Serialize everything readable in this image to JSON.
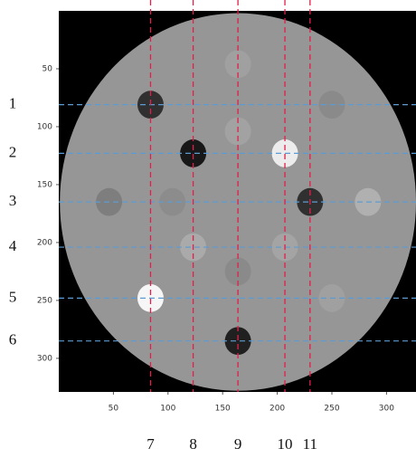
{
  "chart_data": {
    "type": "image",
    "xlim": [
      0,
      327
    ],
    "ylim": [
      329,
      0
    ],
    "xticks": [
      50,
      100,
      150,
      200,
      250,
      300
    ],
    "yticks": [
      50,
      100,
      150,
      200,
      250,
      300
    ],
    "background": "#000000",
    "disk": {
      "cx": 164,
      "cy": 165,
      "r": 163,
      "color": "#969696"
    },
    "circles": [
      {
        "cx": 84,
        "cy": 81,
        "r": 12,
        "color": "#303030"
      },
      {
        "cx": 123,
        "cy": 123,
        "r": 12,
        "color": "#181818"
      },
      {
        "cx": 207,
        "cy": 123,
        "r": 12,
        "color": "#ececec"
      },
      {
        "cx": 230,
        "cy": 165,
        "r": 12,
        "color": "#303030"
      },
      {
        "cx": 84,
        "cy": 248,
        "r": 12,
        "color": "#f6f6f6"
      },
      {
        "cx": 164,
        "cy": 285,
        "r": 12,
        "color": "#202020"
      },
      {
        "cx": 164,
        "cy": 46,
        "r": 12,
        "color": "#a0a0a0"
      },
      {
        "cx": 250,
        "cy": 81,
        "r": 12,
        "color": "#8a8a8a"
      },
      {
        "cx": 164,
        "cy": 104,
        "r": 12,
        "color": "#a2a2a2"
      },
      {
        "cx": 46,
        "cy": 165,
        "r": 12,
        "color": "#7e7e7e"
      },
      {
        "cx": 104,
        "cy": 165,
        "r": 12,
        "color": "#8c8c8c"
      },
      {
        "cx": 283,
        "cy": 165,
        "r": 12,
        "color": "#b0b0b0"
      },
      {
        "cx": 123,
        "cy": 204,
        "r": 12,
        "color": "#aaaaaa"
      },
      {
        "cx": 164,
        "cy": 225,
        "r": 12,
        "color": "#8a8a8a"
      },
      {
        "cx": 207,
        "cy": 204,
        "r": 12,
        "color": "#a4a4a4"
      },
      {
        "cx": 250,
        "cy": 248,
        "r": 12,
        "color": "#a0a0a0"
      }
    ],
    "hline_color": "#5b9bd5",
    "vline_color": "#e0204a",
    "hlines": [
      {
        "label": "1",
        "value": 81
      },
      {
        "label": "2",
        "value": 123
      },
      {
        "label": "3",
        "value": 165
      },
      {
        "label": "4",
        "value": 204
      },
      {
        "label": "5",
        "value": 248
      },
      {
        "label": "6",
        "value": 285
      }
    ],
    "vlines": [
      {
        "label": "7",
        "value": 84
      },
      {
        "label": "8",
        "value": 123
      },
      {
        "label": "9",
        "value": 164
      },
      {
        "label": "10",
        "value": 207
      },
      {
        "label": "11",
        "value": 230
      }
    ]
  }
}
